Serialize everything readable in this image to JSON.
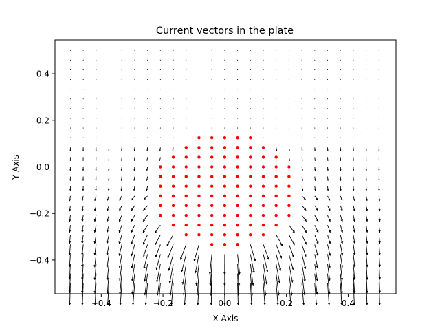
{
  "chart_data": {
    "type": "quiver",
    "title": "Current vectors in the plate",
    "xlabel": "X Axis",
    "ylabel": "Y Axis",
    "xlim": [
      -0.55,
      0.555
    ],
    "ylim": [
      -0.545,
      0.545
    ],
    "xticks": [
      -0.4,
      -0.2,
      0.0,
      0.2,
      0.4
    ],
    "xtick_labels": [
      "−0.4",
      "−0.2",
      "0.0",
      "0.2",
      "0.4"
    ],
    "yticks": [
      -0.4,
      -0.2,
      0.0,
      0.2,
      0.4
    ],
    "ytick_labels": [
      "−0.4",
      "−0.2",
      "0.0",
      "0.2",
      "0.4"
    ],
    "grid": false,
    "grid_points": {
      "x_min": -0.5,
      "x_max": 0.5,
      "y_min": -0.5,
      "y_max": 0.5,
      "n": 25
    },
    "hole": {
      "shape": "circle",
      "center": [
        0.0,
        -0.1
      ],
      "radius": 0.243
    },
    "hole_marker": {
      "type": "scatter",
      "marker": "dot",
      "color": "#ff0000"
    },
    "vector_color": "#000000",
    "vector_field": "downward flow, strongest below the hole, fading to zero towards the top"
  }
}
